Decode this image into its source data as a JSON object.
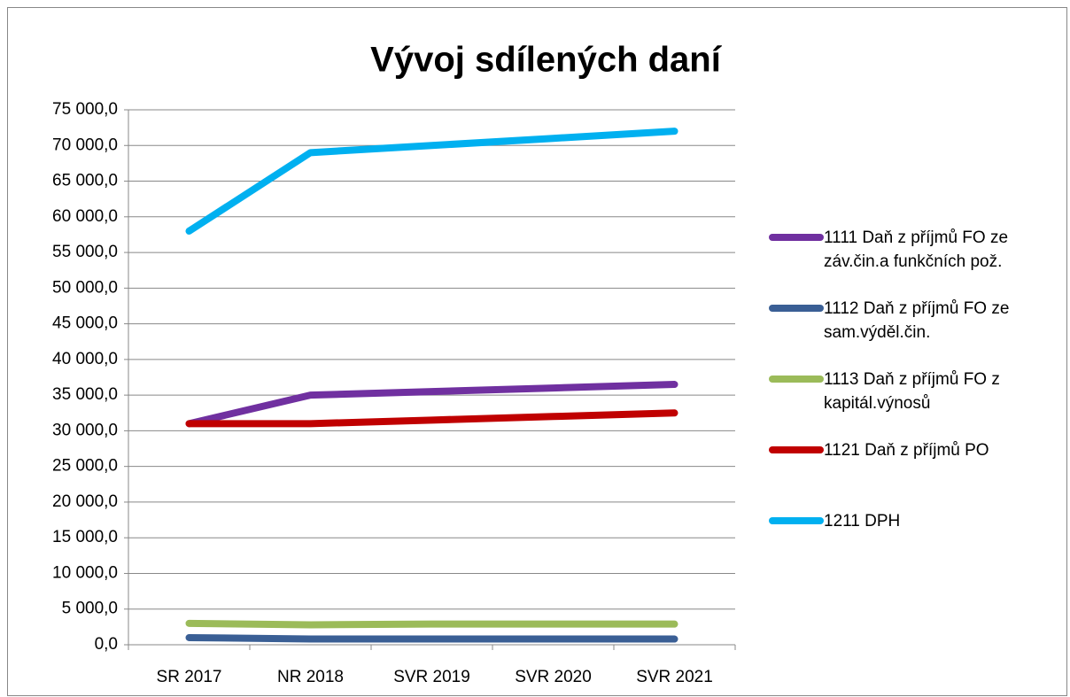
{
  "chart_data": {
    "type": "line",
    "title": "Vývoj sdílených daní",
    "categories": [
      "SR 2017",
      "NR 2018",
      "SVR 2019",
      "SVR 2020",
      "SVR 2021"
    ],
    "series": [
      {
        "name": "1111 Daň z příjmů FO ze záv.čin.a funkčních pož.",
        "color": "#7030a0",
        "values": [
          31000,
          35000,
          35500,
          36000,
          36500
        ]
      },
      {
        "name": "1112 Daň z příjmů FO ze sam.výděl.čin.",
        "color": "#3a5f95",
        "values": [
          1000,
          800,
          800,
          800,
          800
        ]
      },
      {
        "name": "1113 Daň z příjmů FO z kapitál.výnosů",
        "color": "#9bbb59",
        "values": [
          3000,
          2800,
          2900,
          2900,
          2900
        ]
      },
      {
        "name": "1121 Daň z příjmů PO",
        "color": "#c00000",
        "values": [
          31000,
          31000,
          31500,
          32000,
          32500
        ]
      },
      {
        "name": "1211 DPH",
        "color": "#00b0f0",
        "values": [
          58000,
          69000,
          70000,
          71000,
          72000
        ]
      }
    ],
    "ylim": [
      0,
      75000
    ],
    "yticks": [
      {
        "value": 0,
        "label": "0,0"
      },
      {
        "value": 5000,
        "label": "5 000,0"
      },
      {
        "value": 10000,
        "label": "10 000,0"
      },
      {
        "value": 15000,
        "label": "15 000,0"
      },
      {
        "value": 20000,
        "label": "20 000,0"
      },
      {
        "value": 25000,
        "label": "25 000,0"
      },
      {
        "value": 30000,
        "label": "30 000,0"
      },
      {
        "value": 35000,
        "label": "35 000,0"
      },
      {
        "value": 40000,
        "label": "40 000,0"
      },
      {
        "value": 45000,
        "label": "45 000,0"
      },
      {
        "value": 50000,
        "label": "50 000,0"
      },
      {
        "value": 55000,
        "label": "55 000,0"
      },
      {
        "value": 60000,
        "label": "60 000,0"
      },
      {
        "value": 65000,
        "label": "65 000,0"
      },
      {
        "value": 70000,
        "label": "70 000,0"
      },
      {
        "value": 75000,
        "label": "75 000,0"
      }
    ],
    "grid": true,
    "legend": "right"
  }
}
